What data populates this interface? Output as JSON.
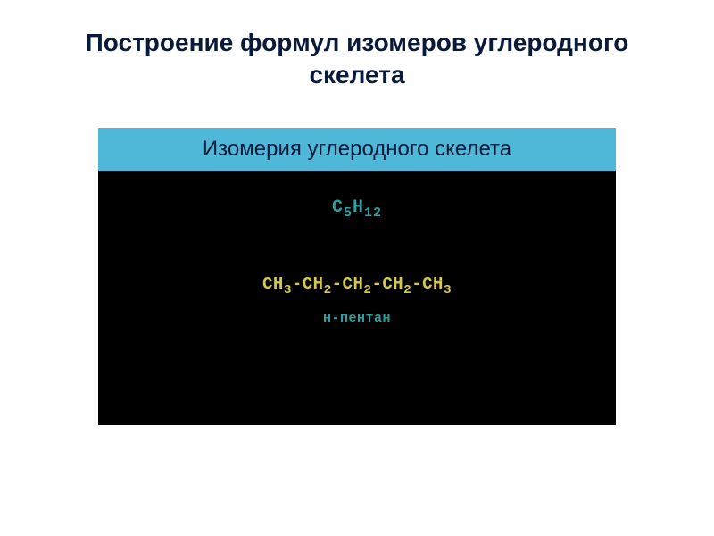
{
  "slide": {
    "title": "Построение формул изомеров углеродного скелета",
    "subtitle": "Изомерия углеродного скелета",
    "chemistry": {
      "molecular_formula_html": "C<sub>5</sub>H<sub>12</sub>",
      "structural_formula_html": "CH<sub>3</sub>-CH<sub>2</sub>-CH<sub>2</sub>-CH<sub>2</sub>-CH<sub>3</sub>",
      "compound_name": "н-пентан"
    },
    "colors": {
      "background": "#ffffff",
      "title_color": "#0a1a3a",
      "subtitle_bg": "#4fb8d8",
      "content_bg": "#000000",
      "formula_cyan": "#2aa0a0",
      "formula_yellow": "#d6c84a"
    },
    "typography": {
      "title_fontsize": 28,
      "subtitle_fontsize": 24,
      "formula_main_fontsize": 20,
      "formula_structure_fontsize": 19,
      "formula_name_fontsize": 15
    }
  }
}
